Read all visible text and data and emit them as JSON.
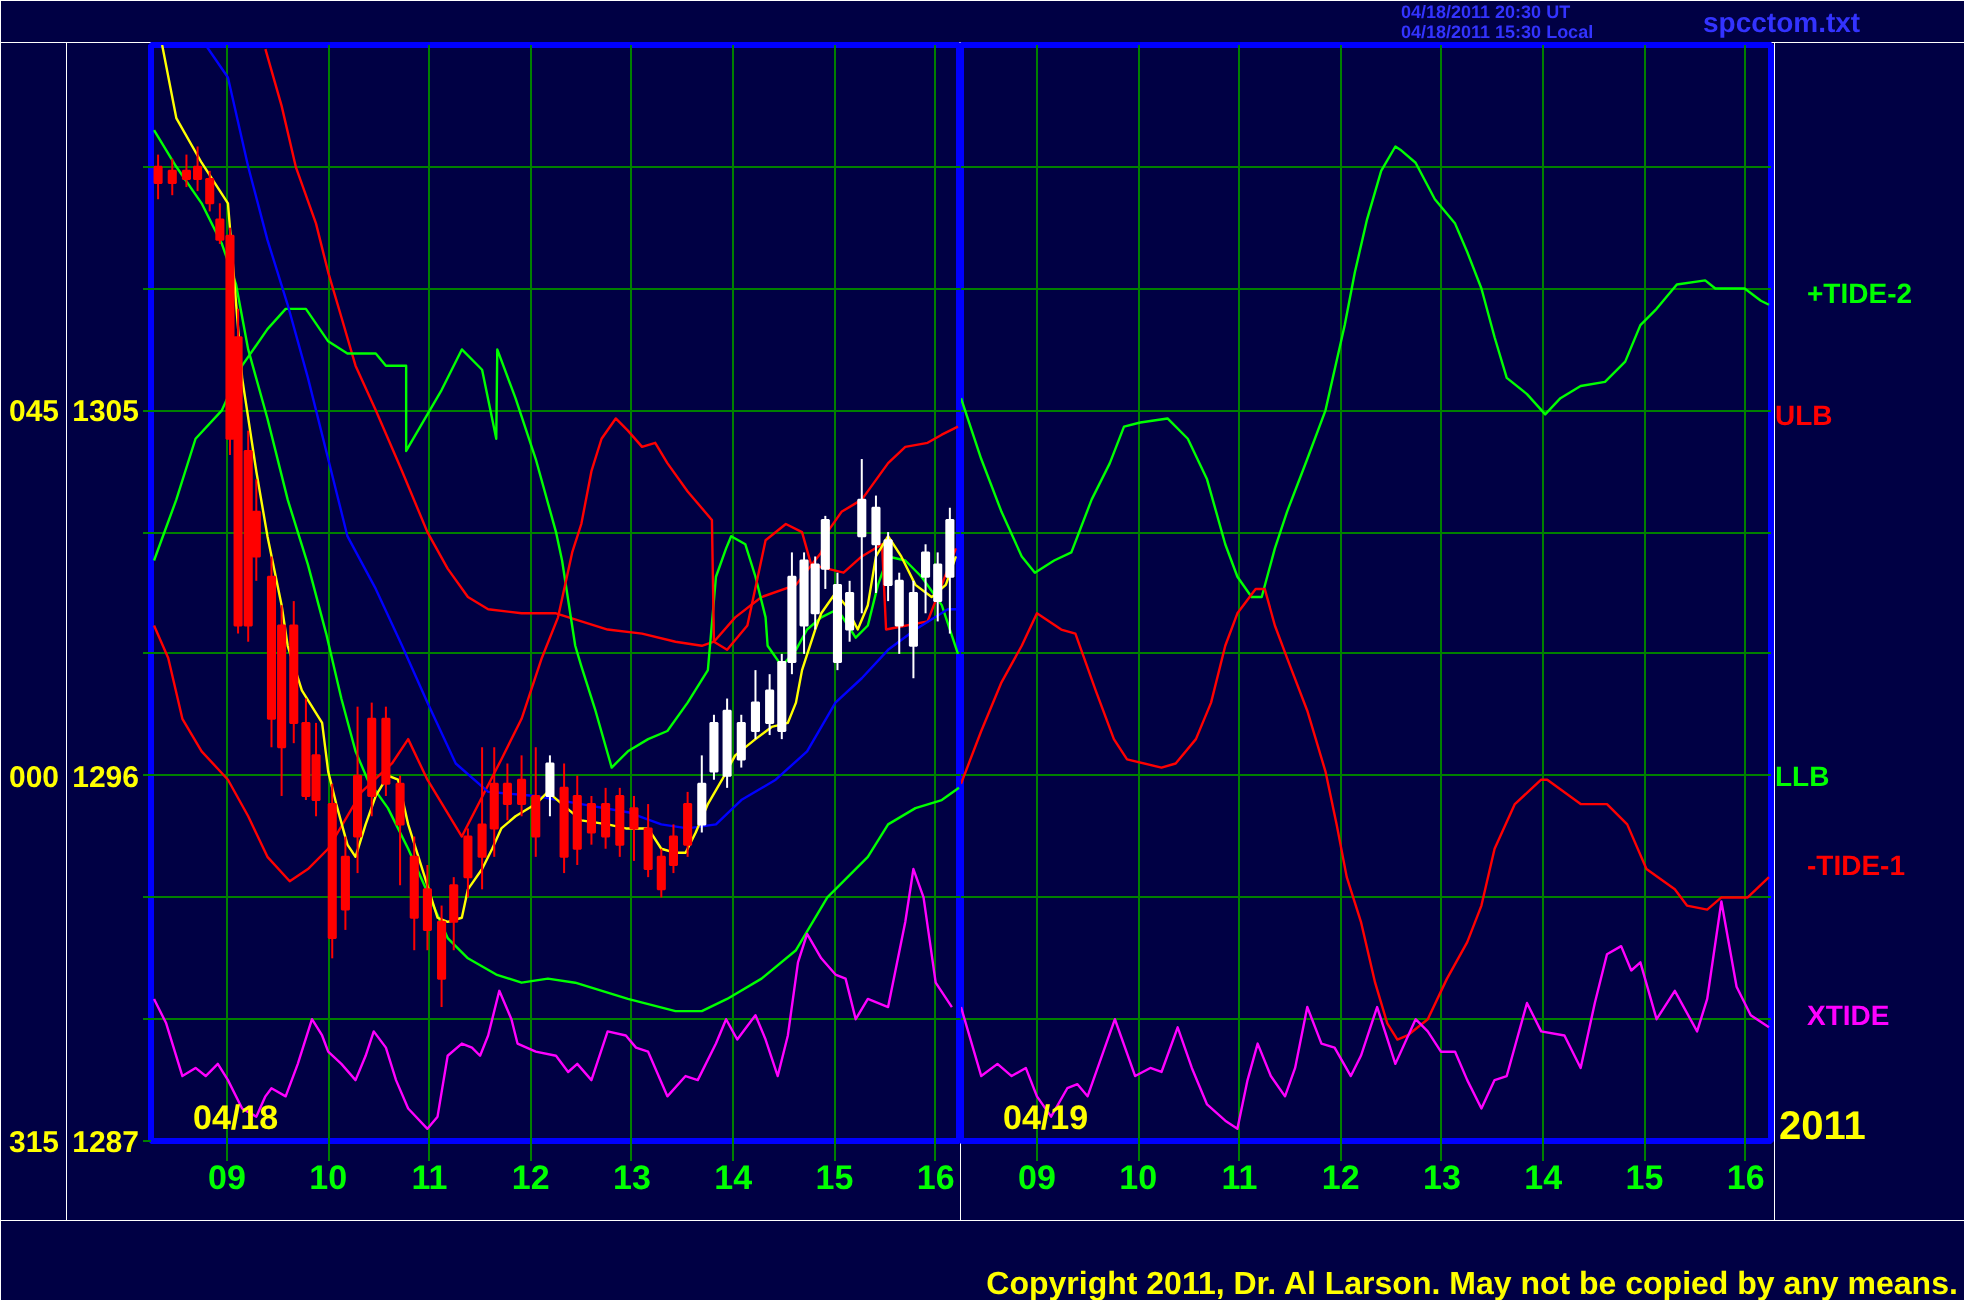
{
  "chart_data": [
    {
      "type": "line",
      "xlim": [
        8.25,
        16.25
      ],
      "ylim": [
        1287,
        1314
      ],
      "xticks": [
        {
          "value": 9,
          "label": "09"
        },
        10,
        11,
        12,
        13,
        14,
        15,
        16
      ],
      "yticks": [
        1287,
        {
          "value": 1290,
          "label": null
        },
        {
          "value": 1293,
          "label": null
        },
        1296,
        {
          "value": 1299,
          "label": null
        },
        {
          "value": 1302,
          "label": null
        },
        1305,
        {
          "value": 1308,
          "label": null
        },
        {
          "value": 1311,
          "label": null
        }
      ],
      "grid": true,
      "annotations": [
        "04/18",
        "045",
        "000",
        "315"
      ],
      "series": [
        {
          "name": "LLB",
          "color": "#00ff00",
          "x": [
            8.28,
            8.5,
            8.75,
            8.95,
            9.09,
            9.21,
            9.4,
            9.6,
            9.8,
            9.98,
            10.13,
            10.27,
            10.39,
            10.59,
            10.79,
            11.18,
            11.38,
            11.66,
            11.91,
            12.17,
            12.44,
            12.96,
            13.43,
            13.69,
            13.94,
            14.28,
            14.62,
            14.93,
            15.13,
            15.33,
            15.53,
            15.8,
            16.06,
            16.23
          ],
          "values": [
            1311.9,
            1311.0,
            1310.1,
            1309.1,
            1308.1,
            1306.5,
            1304.8,
            1302.8,
            1301.2,
            1299.5,
            1297.9,
            1296.6,
            1295.9,
            1295.2,
            1294.2,
            1292.0,
            1291.5,
            1291.1,
            1290.9,
            1291.0,
            1290.9,
            1290.5,
            1290.2,
            1290.2,
            1290.5,
            1291.0,
            1291.7,
            1293.0,
            1293.5,
            1294.0,
            1294.8,
            1295.2,
            1295.4,
            1295.7
          ]
        },
        {
          "name": "ULB",
          "color": "#ff0000",
          "x": [
            9.38,
            9.54,
            9.68,
            9.88,
            10.0,
            10.13,
            10.27,
            10.47,
            10.73,
            10.98,
            11.18,
            11.38,
            11.58,
            11.91,
            12.25,
            12.76,
            13.1,
            13.43,
            13.69,
            13.81,
            14.02,
            14.28,
            14.62,
            14.87,
            14.93,
            15.07,
            15.27,
            15.53,
            15.7,
            15.92,
            16.06,
            16.22
          ],
          "values": [
            1313.9,
            1312.5,
            1311.0,
            1309.6,
            1308.4,
            1307.3,
            1306.1,
            1305.0,
            1303.5,
            1302.0,
            1301.1,
            1300.4,
            1300.1,
            1300.0,
            1300.0,
            1299.6,
            1299.5,
            1299.3,
            1299.2,
            1299.3,
            1299.9,
            1300.4,
            1300.7,
            1301.5,
            1302.0,
            1302.5,
            1302.8,
            1303.7,
            1304.1,
            1304.2,
            1304.4,
            1304.6
          ]
        },
        {
          "color": "#00ff00",
          "x": [
            8.28,
            8.5,
            8.69,
            8.95,
            9.15,
            9.4,
            9.58,
            9.78,
            10.0,
            10.19,
            10.47,
            10.57,
            10.77,
            10.77,
            10.98,
            11.12,
            11.32,
            11.52,
            11.66,
            11.67,
            11.85,
            12.05,
            12.25,
            12.31,
            12.44,
            12.5,
            12.64,
            12.8,
            12.96,
            13.16,
            13.35,
            13.55,
            13.75,
            13.83,
            13.93,
            13.98,
            14.12,
            14.22,
            14.32,
            14.34,
            14.48,
            14.62,
            14.73,
            14.87,
            15.03,
            15.21,
            15.33,
            15.43,
            15.53,
            15.7,
            15.86,
            16.06,
            16.22
          ],
          "values": [
            1301.3,
            1302.8,
            1304.3,
            1305.0,
            1306.1,
            1307.0,
            1307.5,
            1307.5,
            1306.7,
            1306.4,
            1306.4,
            1306.1,
            1306.1,
            1304.0,
            1304.9,
            1305.5,
            1306.5,
            1306.0,
            1304.3,
            1306.5,
            1305.3,
            1303.8,
            1302.0,
            1301.3,
            1299.2,
            1298.7,
            1297.6,
            1296.2,
            1296.6,
            1296.9,
            1297.1,
            1297.8,
            1298.6,
            1300.9,
            1301.6,
            1301.9,
            1301.7,
            1300.9,
            1299.9,
            1299.2,
            1298.7,
            1299.1,
            1299.6,
            1299.9,
            1300.1,
            1299.4,
            1299.7,
            1300.7,
            1301.4,
            1301.3,
            1300.9,
            1300.2,
            1299.0
          ]
        },
        {
          "color": "#ff0000",
          "x": [
            8.28,
            8.42,
            8.56,
            8.75,
            9.01,
            9.21,
            9.4,
            9.62,
            9.8,
            10.0,
            10.33,
            10.63,
            10.79,
            10.98,
            11.32,
            11.71,
            11.91,
            12.11,
            12.27,
            12.41,
            12.5,
            12.6,
            12.7,
            12.84,
            12.96,
            13.1,
            13.23,
            13.35,
            13.55,
            13.79,
            13.81,
            13.94,
            14.14,
            14.32,
            14.52,
            14.68,
            14.77,
            15.09,
            15.27,
            15.47,
            15.51,
            15.92,
            16.06,
            16.2
          ],
          "values": [
            1299.7,
            1298.9,
            1297.4,
            1296.6,
            1295.9,
            1295.0,
            1294.0,
            1293.4,
            1293.7,
            1294.2,
            1295.6,
            1296.3,
            1296.9,
            1295.9,
            1294.5,
            1296.4,
            1297.4,
            1298.9,
            1299.9,
            1301.5,
            1302.2,
            1303.5,
            1304.3,
            1304.8,
            1304.5,
            1304.1,
            1304.2,
            1303.7,
            1303.0,
            1302.3,
            1299.3,
            1299.1,
            1299.7,
            1301.8,
            1302.2,
            1302.0,
            1301.2,
            1301.0,
            1301.4,
            1301.7,
            1299.6,
            1299.8,
            1300.7,
            1301.6
          ]
        },
        {
          "color": "#ff00ff",
          "x": [
            8.28,
            8.4,
            8.56,
            8.69,
            8.79,
            8.91,
            9.01,
            9.15,
            9.29,
            9.38,
            9.44,
            9.58,
            9.7,
            9.84,
            9.94,
            10.0,
            10.13,
            10.27,
            10.37,
            10.45,
            10.57,
            10.67,
            10.79,
            10.98,
            11.08,
            11.18,
            11.32,
            11.42,
            11.5,
            11.58,
            11.69,
            11.81,
            11.87,
            12.05,
            12.25,
            12.37,
            12.46,
            12.6,
            12.76,
            12.94,
            13.04,
            13.16,
            13.35,
            13.53,
            13.65,
            13.83,
            13.93,
            14.04,
            14.22,
            14.32,
            14.44,
            14.54,
            14.64,
            14.73,
            14.87,
            15.01,
            15.11,
            15.21,
            15.33,
            15.53,
            15.7,
            15.78,
            15.88,
            16.0,
            16.16
          ],
          "values": [
            1290.5,
            1289.9,
            1288.6,
            1288.8,
            1288.6,
            1288.9,
            1288.5,
            1287.8,
            1287.6,
            1288.1,
            1288.3,
            1288.1,
            1288.9,
            1290.0,
            1289.6,
            1289.2,
            1288.9,
            1288.5,
            1289.1,
            1289.7,
            1289.3,
            1288.5,
            1287.8,
            1287.3,
            1287.6,
            1289.1,
            1289.4,
            1289.3,
            1289.1,
            1289.6,
            1290.7,
            1290.0,
            1289.4,
            1289.2,
            1289.1,
            1288.7,
            1288.9,
            1288.5,
            1289.7,
            1289.6,
            1289.3,
            1289.2,
            1288.1,
            1288.6,
            1288.5,
            1289.4,
            1290.0,
            1289.5,
            1290.1,
            1289.5,
            1288.6,
            1289.6,
            1291.4,
            1292.1,
            1291.5,
            1291.1,
            1291.0,
            1290.0,
            1290.5,
            1290.3,
            1292.4,
            1293.7,
            1293.0,
            1290.9,
            1290.3
          ]
        },
        {
          "color": "#0000ff",
          "x": [
            8.79,
            9.01,
            9.21,
            9.4,
            9.6,
            9.8,
            10.0,
            10.19,
            10.47,
            10.73,
            10.98,
            11.26,
            11.58,
            12.05,
            12.5,
            12.96,
            13.29,
            13.55,
            13.83,
            14.08,
            14.42,
            14.73,
            15.01,
            15.27,
            15.53,
            15.8,
            16.12,
            16.22
          ],
          "values": [
            1314.0,
            1313.2,
            1311.0,
            1309.2,
            1307.6,
            1305.8,
            1303.8,
            1301.9,
            1300.6,
            1299.2,
            1297.8,
            1296.3,
            1295.6,
            1295.5,
            1295.3,
            1295.1,
            1294.8,
            1294.7,
            1294.8,
            1295.4,
            1295.9,
            1296.6,
            1297.8,
            1298.4,
            1299.1,
            1299.6,
            1300.1,
            1300.1
          ]
        },
        {
          "color": "#ffff00",
          "x": [
            8.36,
            8.5,
            8.75,
            9.01,
            9.15,
            9.29,
            9.4,
            9.54,
            9.6,
            9.74,
            9.94,
            10.0,
            10.08,
            10.19,
            10.27,
            10.37,
            10.47,
            10.59,
            10.69,
            10.79,
            10.98,
            11.08,
            11.18,
            11.32,
            11.38,
            11.52,
            11.62,
            11.71,
            11.85,
            12.05,
            12.17,
            12.31,
            12.5,
            12.76,
            12.94,
            13.16,
            13.29,
            13.43,
            13.53,
            13.63,
            13.75,
            13.89,
            14.02,
            14.22,
            14.38,
            14.54,
            14.62,
            14.68,
            14.81,
            14.87,
            15.01,
            15.11,
            15.23,
            15.33,
            15.41,
            15.53,
            15.66,
            15.8,
            15.96,
            16.1,
            16.2
          ],
          "values": [
            1314.0,
            1312.2,
            1311.1,
            1310.1,
            1305.8,
            1303.5,
            1301.9,
            1300.2,
            1299.2,
            1298.1,
            1297.3,
            1296.1,
            1295.3,
            1294.3,
            1294.0,
            1294.8,
            1295.5,
            1296.0,
            1295.9,
            1294.8,
            1293.3,
            1292.5,
            1292.4,
            1292.5,
            1293.2,
            1293.7,
            1294.2,
            1294.7,
            1295.0,
            1295.3,
            1295.6,
            1295.3,
            1294.9,
            1294.8,
            1294.7,
            1294.7,
            1294.2,
            1294.1,
            1294.1,
            1294.6,
            1295.3,
            1295.9,
            1296.5,
            1296.9,
            1297.2,
            1297.3,
            1297.8,
            1298.6,
            1299.6,
            1300.0,
            1300.5,
            1300.2,
            1299.6,
            1300.2,
            1301.4,
            1301.9,
            1301.4,
            1300.7,
            1300.4,
            1300.7,
            1301.4
          ]
        },
        {
          "type": "candlestick",
          "color": "#ff0000",
          "x": [
            8.32,
            8.46,
            8.6,
            8.71,
            8.83,
            8.93,
            9.03,
            9.11,
            9.21,
            9.29,
            9.44,
            9.54,
            9.66,
            9.78,
            9.88,
            10.04,
            10.17,
            10.29,
            10.43,
            10.57,
            10.71,
            10.85,
            10.98,
            11.12,
            11.24,
            11.38,
            11.52,
            11.64,
            11.77,
            11.91,
            12.05,
            12.33,
            12.46,
            12.6,
            12.74,
            12.88,
            13.02,
            13.16,
            13.29,
            13.41,
            13.55
          ],
          "ohlc": [
            [
              1311.0,
              1311.3,
              1310.2,
              1310.6
            ],
            [
              1310.9,
              1311.2,
              1310.3,
              1310.6
            ],
            [
              1310.9,
              1311.3,
              1310.5,
              1310.7
            ],
            [
              1311.0,
              1311.5,
              1310.4,
              1310.7
            ],
            [
              1310.7,
              1310.9,
              1309.9,
              1310.1
            ],
            [
              1309.7,
              1310.1,
              1309.1,
              1309.2
            ],
            [
              1309.3,
              1309.5,
              1303.9,
              1304.3
            ],
            [
              1306.8,
              1307.5,
              1299.5,
              1299.7
            ],
            [
              1304.0,
              1304.5,
              1299.3,
              1299.7
            ],
            [
              1302.5,
              1303.3,
              1300.8,
              1301.4
            ],
            [
              1300.9,
              1301.4,
              1296.7,
              1297.4
            ],
            [
              1299.7,
              1300.2,
              1295.5,
              1296.7
            ],
            [
              1299.7,
              1300.3,
              1296.8,
              1297.3
            ],
            [
              1297.3,
              1297.9,
              1295.4,
              1295.5
            ],
            [
              1296.5,
              1297.3,
              1295.0,
              1295.4
            ],
            [
              1295.3,
              1295.8,
              1291.5,
              1292.0
            ],
            [
              1294.0,
              1294.5,
              1292.2,
              1292.7
            ],
            [
              1296.0,
              1297.7,
              1293.6,
              1294.5
            ],
            [
              1297.4,
              1297.8,
              1295.0,
              1295.5
            ],
            [
              1297.4,
              1297.7,
              1295.5,
              1295.8
            ],
            [
              1295.8,
              1296.0,
              1293.3,
              1294.8
            ],
            [
              1294.0,
              1294.5,
              1291.7,
              1292.5
            ],
            [
              1293.2,
              1293.8,
              1291.7,
              1292.2
            ],
            [
              1292.4,
              1292.8,
              1290.3,
              1291.0
            ],
            [
              1293.3,
              1293.5,
              1291.7,
              1292.4
            ],
            [
              1294.5,
              1294.7,
              1293.0,
              1293.5
            ],
            [
              1294.8,
              1296.7,
              1293.2,
              1294.0
            ],
            [
              1295.8,
              1296.7,
              1294.0,
              1294.7
            ],
            [
              1295.8,
              1296.3,
              1294.9,
              1295.3
            ],
            [
              1295.9,
              1296.5,
              1295.0,
              1295.3
            ],
            [
              1295.5,
              1296.7,
              1294.0,
              1294.5
            ],
            [
              1295.7,
              1296.3,
              1293.6,
              1294.0
            ],
            [
              1295.5,
              1296.0,
              1293.8,
              1294.2
            ],
            [
              1295.3,
              1295.5,
              1294.3,
              1294.6
            ],
            [
              1295.3,
              1295.7,
              1294.2,
              1294.5
            ],
            [
              1295.5,
              1295.7,
              1294.0,
              1294.3
            ],
            [
              1295.2,
              1295.5,
              1293.9,
              1294.7
            ],
            [
              1294.7,
              1295.3,
              1293.5,
              1293.7
            ],
            [
              1294.0,
              1294.2,
              1293.0,
              1293.2
            ],
            [
              1294.5,
              1294.8,
              1293.6,
              1293.8
            ],
            [
              1295.3,
              1295.6,
              1294.0,
              1294.3
            ]
          ]
        },
        {
          "type": "candlestick",
          "color": "#ffffff",
          "x": [
            12.19,
            13.69,
            13.81,
            13.94,
            14.08,
            14.22,
            14.36,
            14.48,
            14.58,
            14.7,
            14.81,
            14.91,
            15.03,
            15.15,
            15.27,
            15.41,
            15.53,
            15.64,
            15.78,
            15.9,
            16.02,
            16.14
          ],
          "ohlc": [
            [
              1295.5,
              1296.5,
              1295.0,
              1296.3
            ],
            [
              1294.8,
              1296.5,
              1294.6,
              1295.8
            ],
            [
              1296.1,
              1297.5,
              1295.9,
              1297.3
            ],
            [
              1296.0,
              1297.9,
              1295.7,
              1297.6
            ],
            [
              1296.4,
              1297.5,
              1296.2,
              1297.3
            ],
            [
              1297.1,
              1298.6,
              1296.9,
              1297.8
            ],
            [
              1297.3,
              1298.5,
              1297.0,
              1298.1
            ],
            [
              1297.1,
              1299.0,
              1296.9,
              1298.8
            ],
            [
              1298.8,
              1301.5,
              1298.5,
              1300.9
            ],
            [
              1299.7,
              1301.5,
              1299.0,
              1301.3
            ],
            [
              1300.0,
              1301.4,
              1299.6,
              1301.2
            ],
            [
              1301.1,
              1302.4,
              1300.6,
              1302.3
            ],
            [
              1298.8,
              1301.0,
              1298.6,
              1300.7
            ],
            [
              1299.6,
              1300.8,
              1299.3,
              1300.5
            ],
            [
              1301.9,
              1303.8,
              1300.0,
              1302.8
            ],
            [
              1301.7,
              1302.9,
              1300.5,
              1302.6
            ],
            [
              1300.7,
              1302.0,
              1300.3,
              1301.8
            ],
            [
              1299.7,
              1301.0,
              1299.0,
              1300.8
            ],
            [
              1299.2,
              1300.8,
              1298.4,
              1300.5
            ],
            [
              1300.9,
              1301.7,
              1300.0,
              1301.5
            ],
            [
              1300.3,
              1301.5,
              1299.8,
              1301.2
            ],
            [
              1300.9,
              1302.6,
              1299.5,
              1302.3
            ]
          ]
        }
      ]
    },
    {
      "type": "line",
      "xlim": [
        8.25,
        16.25
      ],
      "ylim": [
        1287,
        1314
      ],
      "xticks": [
        {
          "value": 9,
          "label": "09"
        },
        10,
        11,
        12,
        13,
        14,
        15,
        16
      ],
      "yticks": [
        1287,
        {
          "value": 1290,
          "label": null
        },
        {
          "value": 1293,
          "label": null
        },
        1296,
        {
          "value": 1299,
          "label": null
        },
        {
          "value": 1302,
          "label": null
        },
        1305,
        {
          "value": 1308,
          "label": null
        },
        {
          "value": 1311,
          "label": null
        }
      ],
      "tick_labels": "x",
      "grid": true,
      "annotations": [
        "04/19",
        "04/18/2011 20:30 UT",
        "04/18/2011 15:30 Local",
        "spcctom.txt",
        "2011",
        "Copyright 2011, Dr. Al Larson. May not be copied by any means."
      ],
      "series": [
        {
          "name": "+TIDE-2",
          "color": "#00ff00",
          "x": [
            8.25,
            8.45,
            8.65,
            8.85,
            8.98,
            9.17,
            9.34,
            9.54,
            9.72,
            9.86,
            10.02,
            10.29,
            10.49,
            10.68,
            10.86,
            10.98,
            11.12,
            11.22,
            11.35,
            11.47,
            11.67,
            11.85,
            11.94,
            12.04,
            12.14,
            12.26,
            12.4,
            12.54,
            12.6,
            12.74,
            12.93,
            13.13,
            13.25,
            13.39,
            13.52,
            13.64,
            13.84,
            14.02,
            14.17,
            14.37,
            14.61,
            14.81,
            14.96,
            15.12,
            15.32,
            15.6,
            15.7,
            15.99,
            16.15,
            16.23
          ],
          "values": [
            1305.3,
            1303.8,
            1302.5,
            1301.4,
            1301.0,
            1301.3,
            1301.5,
            1302.8,
            1303.7,
            1304.6,
            1304.7,
            1304.8,
            1304.3,
            1303.3,
            1301.7,
            1300.9,
            1300.4,
            1300.4,
            1301.6,
            1302.5,
            1303.8,
            1305.0,
            1306.0,
            1307.1,
            1308.4,
            1309.7,
            1310.9,
            1311.5,
            1311.4,
            1311.1,
            1310.2,
            1309.6,
            1308.9,
            1308.0,
            1306.8,
            1305.8,
            1305.4,
            1304.9,
            1305.3,
            1305.6,
            1305.7,
            1306.2,
            1307.1,
            1307.5,
            1308.1,
            1308.2,
            1308.0,
            1308.0,
            1307.7,
            1307.6
          ]
        },
        {
          "name": "-TIDE-1",
          "color": "#ff0000",
          "x": [
            8.25,
            8.45,
            8.65,
            8.85,
            9.0,
            9.24,
            9.38,
            9.58,
            9.76,
            9.89,
            10.23,
            10.37,
            10.57,
            10.72,
            10.86,
            10.98,
            11.16,
            11.25,
            11.35,
            11.47,
            11.67,
            11.85,
            11.96,
            12.06,
            12.2,
            12.34,
            12.46,
            12.56,
            12.66,
            12.86,
            13.05,
            13.25,
            13.39,
            13.52,
            13.72,
            13.98,
            14.04,
            14.37,
            14.63,
            14.83,
            15.02,
            15.3,
            15.42,
            15.62,
            15.76,
            16.02,
            16.23
          ],
          "values": [
            1295.8,
            1297.1,
            1298.3,
            1299.2,
            1300.0,
            1299.6,
            1299.5,
            1298.1,
            1296.9,
            1296.4,
            1296.2,
            1296.3,
            1296.9,
            1297.8,
            1299.2,
            1300.0,
            1300.6,
            1300.6,
            1299.7,
            1298.9,
            1297.6,
            1296.1,
            1294.8,
            1293.5,
            1292.4,
            1290.9,
            1289.9,
            1289.5,
            1289.6,
            1290.0,
            1291.0,
            1291.9,
            1292.8,
            1294.2,
            1295.3,
            1295.9,
            1295.9,
            1295.3,
            1295.3,
            1294.8,
            1293.7,
            1293.2,
            1292.8,
            1292.7,
            1293.0,
            1293.0,
            1293.5
          ]
        },
        {
          "name": "XTIDE",
          "color": "#ff00ff",
          "x": [
            8.25,
            8.45,
            8.61,
            8.75,
            8.89,
            9.0,
            9.14,
            9.3,
            9.4,
            9.5,
            9.77,
            9.97,
            10.12,
            10.23,
            10.39,
            10.53,
            10.68,
            10.86,
            10.98,
            11.08,
            11.18,
            11.31,
            11.45,
            11.55,
            11.67,
            11.81,
            11.94,
            12.1,
            12.2,
            12.36,
            12.54,
            12.74,
            12.86,
            12.99,
            13.13,
            13.25,
            13.39,
            13.52,
            13.64,
            13.84,
            13.98,
            14.21,
            14.37,
            14.51,
            14.63,
            14.77,
            14.87,
            14.96,
            15.12,
            15.3,
            15.52,
            15.62,
            15.76,
            15.91,
            16.05,
            16.23
          ],
          "values": [
            1290.3,
            1288.6,
            1288.9,
            1288.6,
            1288.8,
            1288.1,
            1287.6,
            1288.3,
            1288.4,
            1288.1,
            1290.0,
            1288.6,
            1288.8,
            1288.7,
            1289.8,
            1288.8,
            1287.9,
            1287.5,
            1287.3,
            1288.5,
            1289.4,
            1288.6,
            1288.1,
            1288.8,
            1290.3,
            1289.4,
            1289.3,
            1288.6,
            1289.1,
            1290.3,
            1288.9,
            1290.0,
            1289.7,
            1289.2,
            1289.2,
            1288.5,
            1287.8,
            1288.5,
            1288.6,
            1290.4,
            1289.7,
            1289.6,
            1288.8,
            1290.4,
            1291.6,
            1291.8,
            1291.2,
            1291.4,
            1290.0,
            1290.7,
            1289.7,
            1290.5,
            1292.9,
            1290.8,
            1290.1,
            1289.8
          ]
        }
      ]
    }
  ]
}
